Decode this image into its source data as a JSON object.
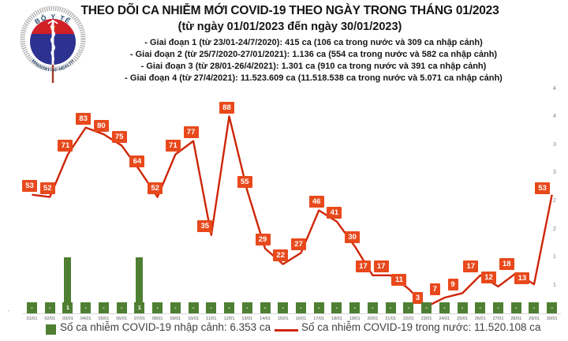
{
  "header": {
    "title": "THEO DÕI CA NHIỄM MỚI COVID-19 THEO NGÀY TRONG THÁNG 01/2023",
    "subtitle": "(từ ngày 01/01/2023 đến ngày 30/01/2023)",
    "bullets": [
      "- Giai đoạn 1 (từ 23/01-24/7/2020): 415 ca (106 ca trong nước và 309 ca nhập cảnh)",
      "- Giai đoạn 2 (từ 25/7/2020-27/01/2021): 1.136 ca (554 ca trong nước và 582 ca nhập cảnh)",
      "- Giai đoạn 3 (từ 28/01-26/4/2021): 1.301 ca (910 ca trong nước và 391 ca nhập cảnh)",
      "- Giai đoạn 4 (từ 27/4/2021): 11.523.609 ca (11.518.538 ca trong nước và 5.071 ca nhập cảnh)"
    ],
    "logo": {
      "top_text": "BỘ Y TẾ",
      "bottom_text": "MINISTRY OF HEALTH"
    }
  },
  "chart_data": {
    "type": "line+bar",
    "categories": [
      "01/01",
      "02/01",
      "03/01",
      "04/01",
      "05/01",
      "06/01",
      "07/01",
      "08/01",
      "09/01",
      "10/01",
      "11/01",
      "12/01",
      "13/01",
      "14/01",
      "15/01",
      "16/01",
      "17/01",
      "18/01",
      "19/01",
      "20/01",
      "21/01",
      "22/01",
      "23/01",
      "24/01",
      "25/01",
      "26/01",
      "27/01",
      "28/01",
      "29/01",
      "30/01"
    ],
    "series": [
      {
        "name": "Số ca nhiễm COVID-19 trong nước",
        "type": "line",
        "values": [
          53,
          52,
          71,
          83,
          80,
          75,
          64,
          52,
          71,
          77,
          35,
          88,
          55,
          29,
          22,
          27,
          46,
          41,
          30,
          17,
          17,
          11,
          3,
          7,
          9,
          17,
          12,
          18,
          13,
          53
        ]
      },
      {
        "name": "Số ca nhiễm COVID-19 nhập cảnh",
        "type": "bar",
        "values": [
          0,
          0,
          1,
          0,
          0,
          0,
          1,
          0,
          0,
          0,
          0,
          0,
          0,
          0,
          0,
          0,
          0,
          0,
          0,
          0,
          0,
          0,
          0,
          0,
          0,
          0,
          0,
          0,
          0,
          0
        ],
        "labels": [
          "-",
          "-",
          "1",
          "-",
          "-",
          "-",
          "1",
          "-",
          "-",
          "-",
          "-",
          "-",
          "-",
          "-",
          "-",
          "-",
          "-",
          "-",
          "-",
          "-",
          "-",
          "-",
          "-",
          "-",
          "-",
          "-",
          "-",
          "-",
          "-",
          "-"
        ]
      }
    ],
    "right_axis_ticks": [
      "4",
      "4",
      "3",
      "3",
      "2",
      "2",
      "1",
      "1",
      "-"
    ],
    "left_axis_zero": "-",
    "ylim_primary": [
      0,
      100
    ],
    "ylim_secondary": [
      0,
      4.5
    ],
    "grid": false,
    "legend_position": "bottom"
  },
  "legend": {
    "bar_item": "Số ca nhiễm COVID-19 nhập cảnh: 6.353 ca",
    "line_item": "Số ca nhiễm COVID-19 trong nước: 11.520.108 ca"
  },
  "colors": {
    "line": "#cf2508",
    "label_box": "#e8491c",
    "bar": "#4e7f32",
    "tick_text": "#595959",
    "axis_text": "#7f7f7f",
    "legend_text": "#404040",
    "title_text": "#151515",
    "logo_text": "#24486e",
    "logo_red": "#d22027",
    "logo_blue": "#2d3190",
    "logo_star": "#f5c518"
  }
}
